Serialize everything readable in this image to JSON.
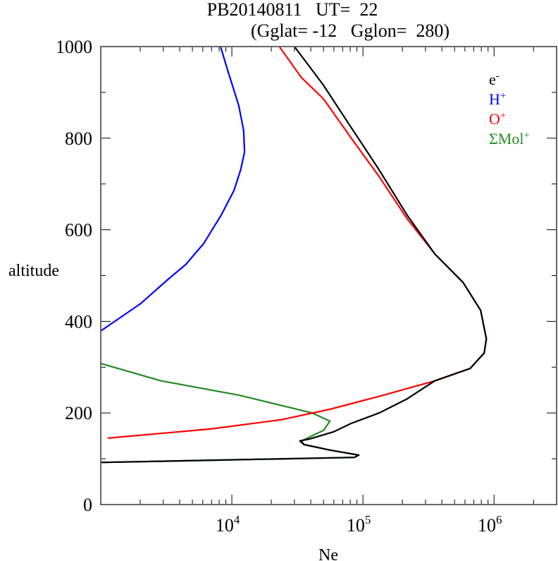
{
  "chart_data": {
    "type": "line",
    "title": "PB20140811   UT=  22",
    "subtitle": "(Gglat= -12   Gglon=  280)",
    "xlabel": "Ne",
    "ylabel": "altitude",
    "xscale": "log",
    "xlim": [
      1000,
      3000000
    ],
    "ylim": [
      0,
      1000
    ],
    "x_ticks": [
      {
        "base": "10",
        "exp": "4",
        "value": 10000
      },
      {
        "base": "10",
        "exp": "5",
        "value": 100000
      },
      {
        "base": "10",
        "exp": "6",
        "value": 1000000
      }
    ],
    "y_ticks": [
      "0",
      "200",
      "400",
      "600",
      "800",
      "1000"
    ],
    "legend_placement": "top-right",
    "series": [
      {
        "name": "e",
        "sup": "-",
        "color": "#000000",
        "points": [
          [
            30000,
            1000
          ],
          [
            49600,
            917
          ],
          [
            81000,
            824
          ],
          [
            132000,
            732
          ],
          [
            217000,
            632
          ],
          [
            354000,
            547
          ],
          [
            580000,
            485
          ],
          [
            790000,
            424
          ],
          [
            874000,
            362
          ],
          [
            842000,
            331
          ],
          [
            656000,
            297
          ],
          [
            352000,
            270
          ],
          [
            218000,
            231
          ],
          [
            133000,
            200
          ],
          [
            81000,
            177
          ],
          [
            60000,
            159
          ],
          [
            39000,
            143
          ],
          [
            33000,
            139
          ],
          [
            35500,
            131
          ],
          [
            56000,
            119
          ],
          [
            93000,
            108
          ],
          [
            86000,
            103
          ],
          [
            1000,
            92
          ]
        ]
      },
      {
        "name": "H",
        "sup": "+",
        "color": "#0000ff",
        "points": [
          [
            1000,
            379
          ],
          [
            2020,
            439
          ],
          [
            3300,
            493
          ],
          [
            4450,
            524
          ],
          [
            6100,
            570
          ],
          [
            8300,
            632
          ],
          [
            10400,
            686
          ],
          [
            11700,
            732
          ],
          [
            12500,
            770
          ],
          [
            12300,
            817
          ],
          [
            11300,
            871
          ],
          [
            9300,
            948
          ],
          [
            8200,
            1000
          ]
        ]
      },
      {
        "name": "O",
        "sup": "+",
        "color": "#ff0000",
        "points": [
          [
            1130,
            145
          ],
          [
            6900,
            165
          ],
          [
            23600,
            185
          ],
          [
            56000,
            208
          ],
          [
            132000,
            236
          ],
          [
            352000,
            270
          ],
          [
            656000,
            297
          ],
          [
            842000,
            331
          ],
          [
            874000,
            362
          ],
          [
            790000,
            424
          ],
          [
            580000,
            485
          ],
          [
            354000,
            547
          ],
          [
            217000,
            624
          ],
          [
            133000,
            716
          ],
          [
            81000,
            801
          ],
          [
            50000,
            886
          ],
          [
            34000,
            932
          ],
          [
            23000,
            1000
          ]
        ]
      },
      {
        "name": "ΣMol",
        "sup": "+",
        "color": "#228b22",
        "points": [
          [
            1000,
            308
          ],
          [
            2900,
            270
          ],
          [
            11300,
            239
          ],
          [
            41000,
            200
          ],
          [
            56000,
            182
          ],
          [
            50000,
            162
          ],
          [
            34000,
            139
          ],
          [
            35500,
            131
          ],
          [
            56000,
            119
          ],
          [
            93000,
            108
          ],
          [
            86000,
            103
          ],
          [
            1000,
            92
          ]
        ]
      }
    ]
  }
}
